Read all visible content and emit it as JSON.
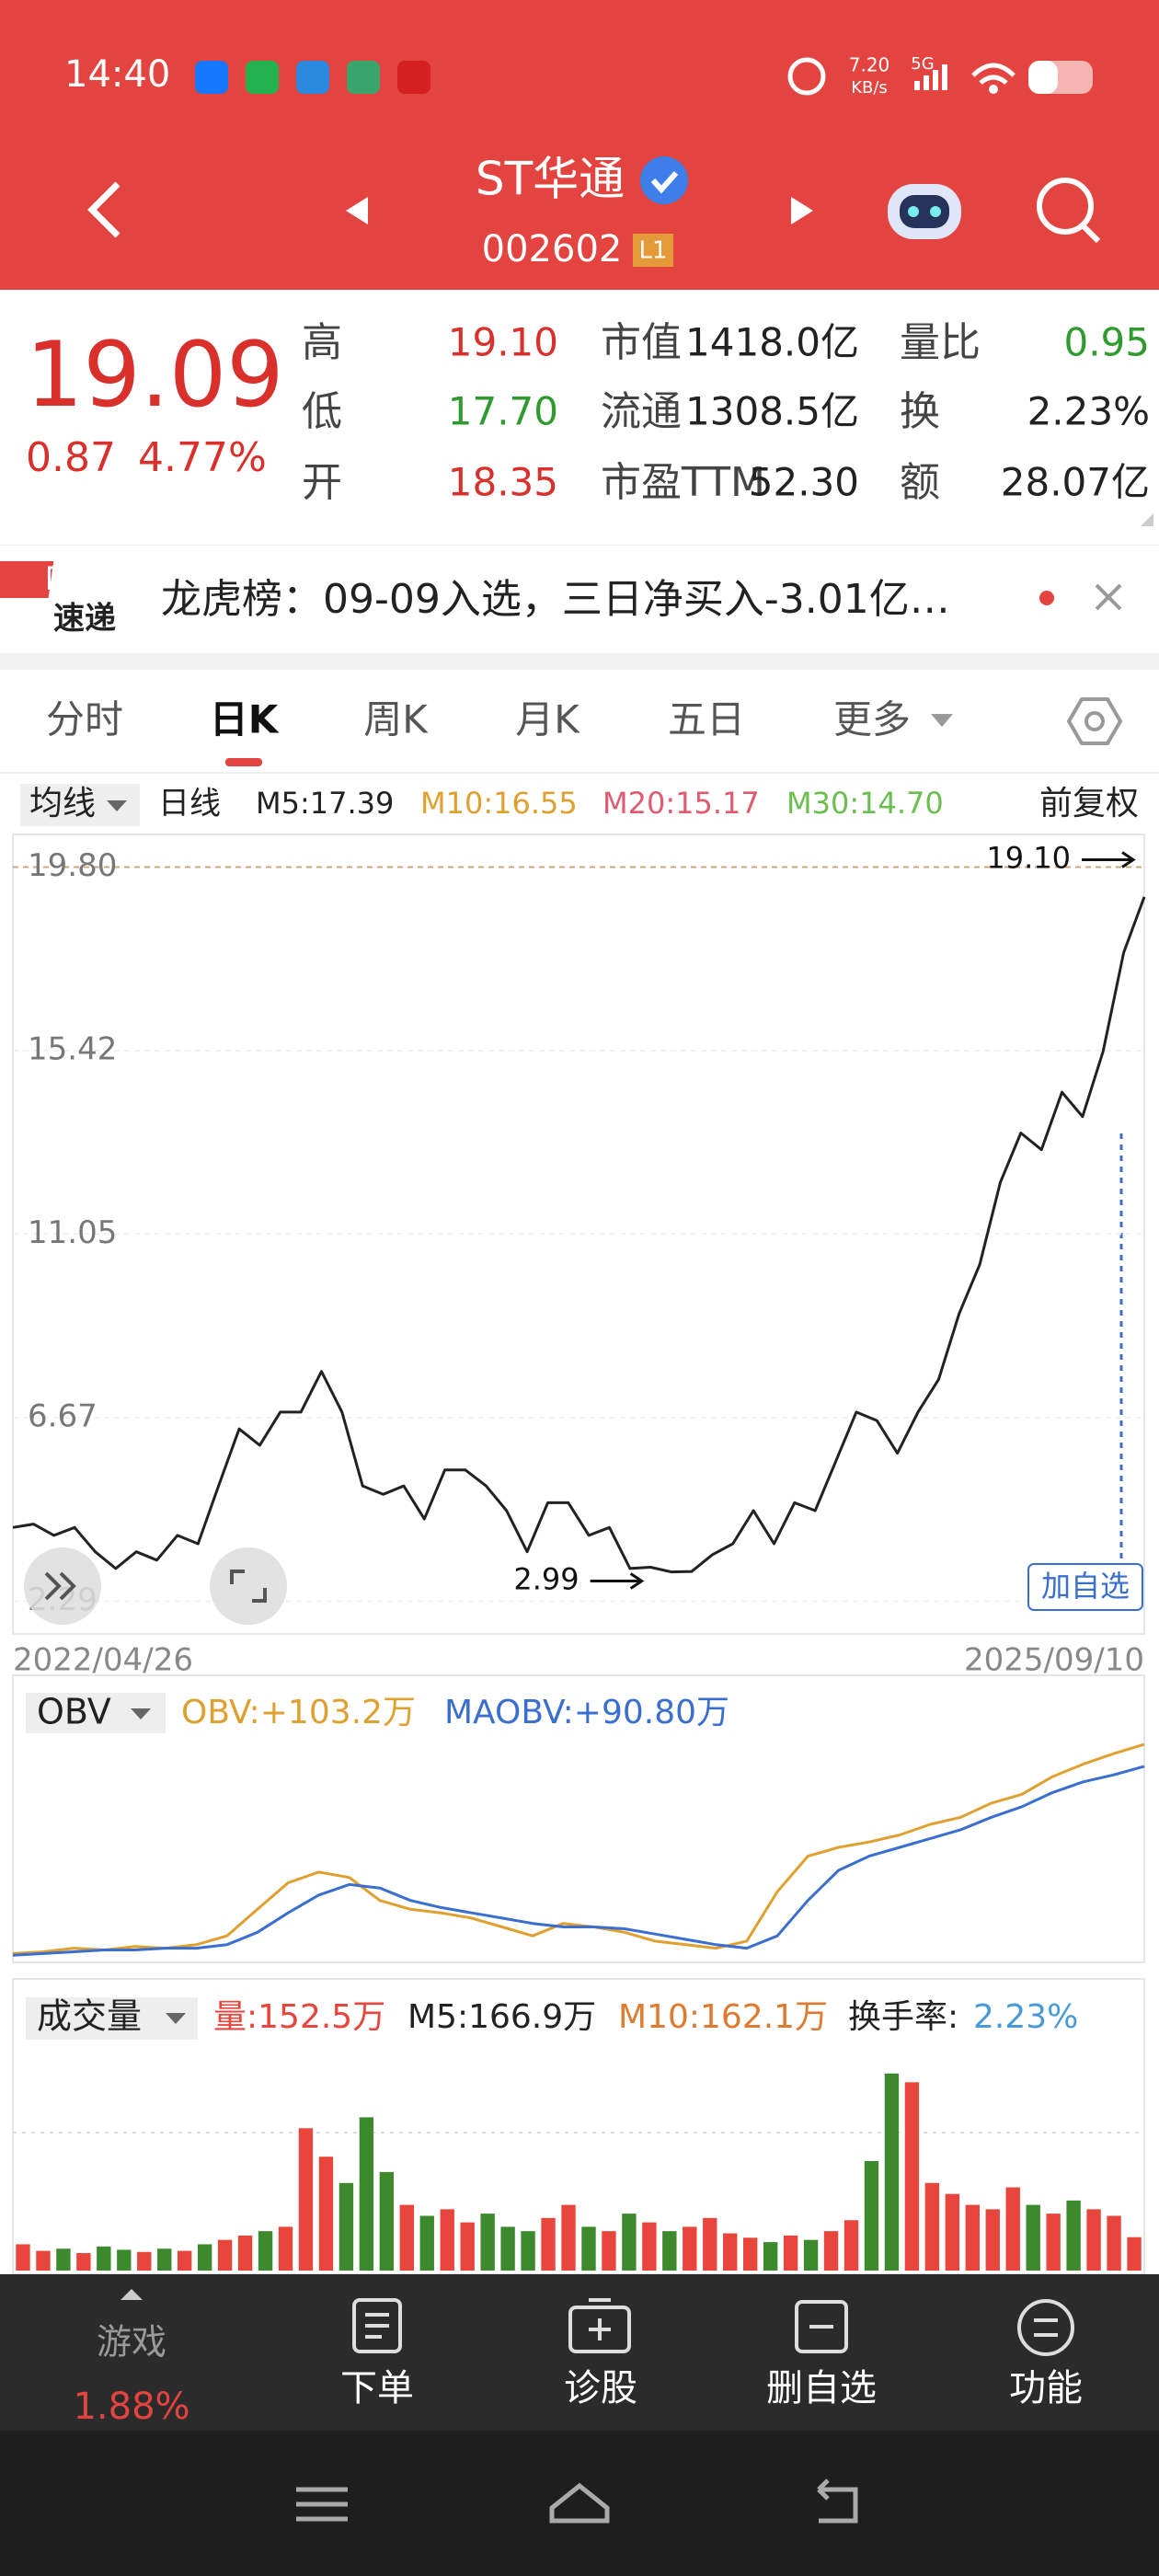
{
  "status_bar": {
    "time": "14:40",
    "speed": "7.20",
    "speed_unit": "KB/s",
    "network": "5G"
  },
  "header": {
    "title": "ST华通",
    "code": "002602",
    "level": "L1"
  },
  "quote": {
    "price": "19.09",
    "change": "0.87",
    "change_pct": "4.77%",
    "stats": [
      [
        "高",
        "19.10",
        "市值",
        "1418.0亿",
        "量比",
        "0.95"
      ],
      [
        "低",
        "17.70",
        "流通",
        "1308.5亿",
        "换",
        "2.23%"
      ],
      [
        "开",
        "18.35",
        "市盈TTM",
        "52.30",
        "额",
        "28.07亿"
      ]
    ]
  },
  "banner": {
    "logo_top": "同花顺",
    "logo_bottom": "速递",
    "text": "龙虎榜：09-09入选，三日净买入-3.01亿…"
  },
  "tabs": [
    "分时",
    "日K",
    "周K",
    "月K",
    "五日",
    "更多"
  ],
  "ma_bar": {
    "selector": "均线",
    "period": "日线",
    "items": [
      "M5:17.39",
      "M10:16.55",
      "M20:15.17",
      "M30:14.70"
    ],
    "adjust": "前复权"
  },
  "chart_data": [
    {
      "type": "line",
      "date_start": "2022/04/26",
      "date_end": "2025/09/10",
      "ylim": [
        1.51,
        20.58
      ],
      "yticks": [
        {
          "value": 19.8,
          "label": "19.80"
        },
        15.42,
        11.05,
        6.67,
        2.29
      ],
      "series": [
        {
          "color": "#222222",
          "values": [
            4.05,
            4.13,
            3.86,
            4.05,
            3.47,
            3.07,
            3.47,
            3.27,
            3.86,
            3.66,
            5.04,
            6.4,
            6.01,
            6.8,
            6.8,
            7.77,
            6.8,
            5.04,
            4.84,
            5.04,
            4.25,
            5.42,
            5.42,
            5.04,
            4.45,
            3.47,
            4.64,
            4.64,
            3.86,
            4.05,
            3.07,
            3.1,
            2.99,
            3.0,
            3.4,
            3.66,
            4.45,
            3.66,
            4.64,
            4.45,
            5.62,
            6.8,
            6.6,
            5.82,
            6.8,
            7.58,
            9.15,
            10.32,
            12.28,
            13.46,
            13.06,
            14.43,
            13.85,
            15.41,
            17.76,
            19.09
          ]
        }
      ],
      "annotations": [
        {
          "value": 19.1,
          "label": "19.10"
        },
        {
          "value": 2.99,
          "label": "2.99"
        }
      ],
      "button": "加自选"
    },
    {
      "type": "line",
      "indicator": "OBV",
      "ylim": [
        -20,
        110
      ],
      "series": [
        {
          "name": "OBV:+103.2万",
          "color": "#e0a030",
          "values": [
            -15,
            -14,
            -12,
            -13,
            -11,
            -12,
            -10,
            -5,
            10,
            25,
            31,
            28,
            15,
            10,
            8,
            5,
            0,
            -5,
            2,
            0,
            -3,
            -8,
            -10,
            -12,
            -8,
            20,
            40,
            45,
            48,
            52,
            58,
            62,
            70,
            75,
            85,
            92,
            98,
            103.2
          ]
        },
        {
          "name": "MAOBV:+90.80万",
          "color": "#3a6fd0",
          "values": [
            -16,
            -15,
            -14,
            -13,
            -13,
            -12,
            -12,
            -10,
            -3,
            8,
            18,
            24,
            22,
            15,
            11,
            8,
            5,
            2,
            0,
            0,
            -1,
            -4,
            -7,
            -10,
            -12,
            -5,
            15,
            32,
            40,
            45,
            50,
            55,
            62,
            68,
            76,
            82,
            86,
            90.8
          ]
        }
      ]
    },
    {
      "type": "bar",
      "indicator": "成交量",
      "ylim": [
        0,
        1000
      ],
      "up_color": "#e8463c",
      "down_color": "#3d8a2e",
      "series": [
        {
          "name": "量:152.5万",
          "color": "#e8463c",
          "values": [
            120,
            90,
            100,
            80,
            110,
            95,
            85,
            100,
            90,
            120,
            140,
            160,
            180,
            200,
            650,
            520,
            400,
            700,
            450,
            300,
            250,
            280,
            220,
            260,
            200,
            180,
            240,
            300,
            200,
            180,
            260,
            220,
            180,
            200,
            240,
            170,
            150,
            130,
            160,
            140,
            180,
            230,
            500,
            900,
            860,
            400,
            350,
            300,
            280,
            380,
            300,
            260,
            320,
            280,
            250,
            152.5
          ]
        }
      ],
      "stats": [
        {
          "text": "M5:166.9万",
          "color": "#222222"
        },
        {
          "text": "M10:162.1万",
          "color": "#e07a30"
        }
      ],
      "turnover_label": "换手率:",
      "turnover": "2.23%"
    }
  ],
  "bottom_nav": {
    "ticker": "游戏",
    "ticker_change": "1.88%",
    "items": [
      "下单",
      "诊股",
      "删自选",
      "功能"
    ]
  }
}
